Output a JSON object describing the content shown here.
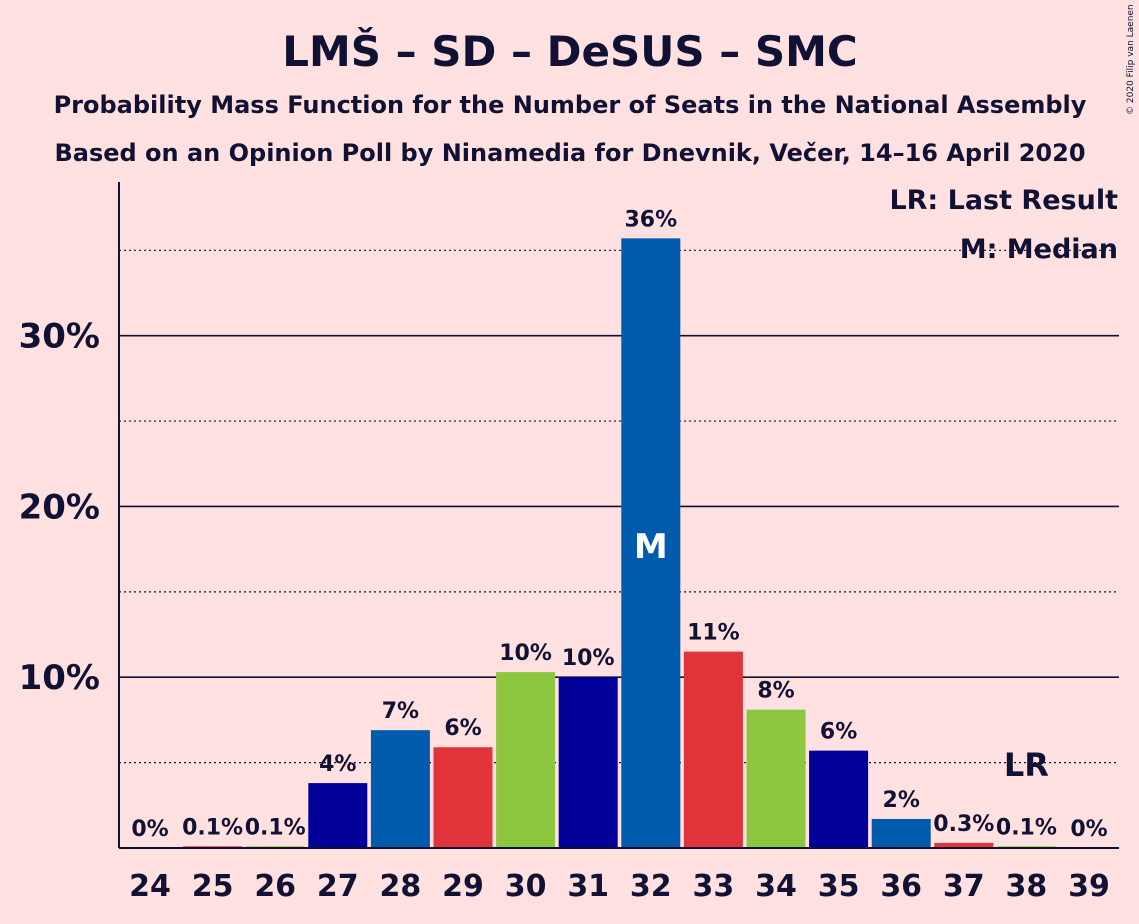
{
  "chart_data": {
    "type": "bar",
    "title": "LMŠ – SD – DeSUS – SMC",
    "subtitle": "Probability Mass Function for the Number of Seats in the National Assembly",
    "subtitle2": "Based on an Opinion Poll by Ninamedia for Dnevnik, Večer, 14–16 April 2020",
    "copyright": "© 2020 Filip van Laenen",
    "categories": [
      "24",
      "25",
      "26",
      "27",
      "28",
      "29",
      "30",
      "31",
      "32",
      "33",
      "34",
      "35",
      "36",
      "37",
      "38",
      "39"
    ],
    "values": [
      0,
      0.1,
      0.1,
      3.8,
      6.9,
      5.9,
      10.3,
      10.0,
      35.7,
      11.5,
      8.1,
      5.7,
      1.7,
      0.3,
      0.1,
      0
    ],
    "value_labels": [
      "0%",
      "0.1%",
      "0.1%",
      "4%",
      "7%",
      "6%",
      "10%",
      "10%",
      "36%",
      "11%",
      "8%",
      "6%",
      "2%",
      "0.3%",
      "0.1%",
      "0%"
    ],
    "bar_colors": [
      "#005BAC",
      "#E0333A",
      "#8DC63F",
      "#000099",
      "#005BAC",
      "#E0333A",
      "#8DC63F",
      "#000099",
      "#005BAC",
      "#E0333A",
      "#8DC63F",
      "#000099",
      "#005BAC",
      "#E0333A",
      "#8DC63F",
      "#000099"
    ],
    "ylim": [
      0,
      39
    ],
    "yticks": [
      10,
      20,
      30
    ],
    "ytick_labels": [
      "10%",
      "20%",
      "30%"
    ],
    "dotted_gridlines": [
      5,
      15,
      25,
      35
    ],
    "median_category": "32",
    "median_mark": "M",
    "last_result_category": "38",
    "last_result_mark": "LR",
    "legend": [
      "LR: Last Result",
      "M: Median"
    ],
    "legend_position": "top-right"
  }
}
